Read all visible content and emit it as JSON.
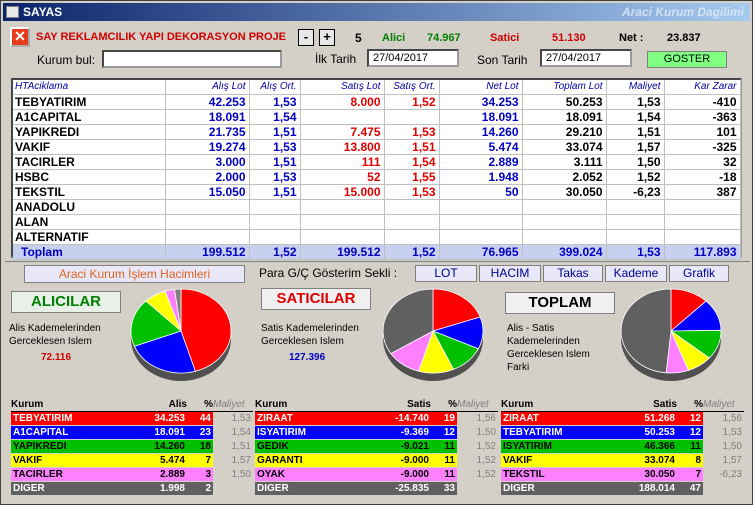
{
  "window": {
    "title": "SAYAS",
    "subtitle": "Araci Kurum Dagilimi"
  },
  "header": {
    "company": "SAY REKLAMCILIK YAPI DEKORASYON PROJE",
    "minus": "-",
    "plus": "+",
    "count": "5",
    "alici_label": "Alici",
    "alici_value": "74.967",
    "satici_label": "Satici",
    "satici_value": "51.130",
    "net_label": "Net :",
    "net_value": "23.837",
    "kurum_bul_label": "Kurum bul:",
    "kurum_bul_value": "",
    "ilk_tarih_label": "İlk Tarih",
    "ilk_tarih": "27/04/2017",
    "son_tarih_label": "Son Tarih",
    "son_tarih": "27/04/2017",
    "goster": "GOSTER"
  },
  "table": {
    "headers": [
      "HTAciklama",
      "Alış Lot",
      "Alış Ort.",
      "Satış Lot",
      "Satış Ort.",
      "Net Lot",
      "Toplam Lot",
      "Maliyet",
      "Kar Zarar"
    ],
    "rows": [
      [
        "TEBYATIRIM",
        "42.253",
        "1,53",
        "8.000",
        "1,52",
        "34.253",
        "50.253",
        "1,53",
        "-410"
      ],
      [
        "A1CAPITAL",
        "18.091",
        "1,54",
        "",
        "",
        "18.091",
        "18.091",
        "1,54",
        "-363"
      ],
      [
        "YAPIKREDI",
        "21.735",
        "1,51",
        "7.475",
        "1,53",
        "14.260",
        "29.210",
        "1,51",
        "101"
      ],
      [
        "VAKIF",
        "19.274",
        "1,53",
        "13.800",
        "1,51",
        "5.474",
        "33.074",
        "1,57",
        "-325"
      ],
      [
        "TACIRLER",
        "3.000",
        "1,51",
        "111",
        "1,54",
        "2.889",
        "3.111",
        "1,50",
        "32"
      ],
      [
        "HSBC",
        "2.000",
        "1,53",
        "52",
        "1,55",
        "1.948",
        "2.052",
        "1,52",
        "-18"
      ],
      [
        "TEKSTIL",
        "15.050",
        "1,51",
        "15.000",
        "1,53",
        "50",
        "30.050",
        "-6,23",
        "387"
      ],
      [
        "ANADOLU",
        "",
        "",
        "",
        "",
        "",
        "",
        "",
        ""
      ],
      [
        "ALAN",
        "",
        "",
        "",
        "",
        "",
        "",
        "",
        ""
      ],
      [
        "ALTERNATIF",
        "",
        "",
        "",
        "",
        "",
        "",
        "",
        ""
      ]
    ],
    "total": [
      "Toplam",
      "199.512",
      "1,52",
      "199.512",
      "1,52",
      "76.965",
      "399.024",
      "1,53",
      "117.893"
    ]
  },
  "controls": {
    "hacim": "Araci Kurum İşlem Hacimleri",
    "para_label": "Para G/Ç Gösterim Sekli :",
    "tabs": [
      "LOT",
      "HACIM",
      "Takas",
      "Kademe",
      "Grafik"
    ]
  },
  "alicilar": {
    "title": "ALICILAR",
    "desc1": "Alis Kademelerinden",
    "desc2": "Gerceklesen Islem",
    "value": "72.116"
  },
  "saticilar": {
    "title": "SATICILAR",
    "desc1": "Satis Kademelerinden",
    "desc2": "Gerceklesen Islem",
    "value": "127.396"
  },
  "toplam": {
    "title": "TOPLAM",
    "desc1": "Alis - Satis",
    "desc2": "Kademelerinden",
    "desc3": "Gerceklesen Islem",
    "desc4": "Farki"
  },
  "buy_table": {
    "headers": [
      "Kurum",
      "Alis",
      "%",
      "Maliyet"
    ],
    "rows": [
      {
        "name": "TEBYATIRIM",
        "val": "34.253",
        "pct": "44",
        "mal": "1,53",
        "color": "#ff0000"
      },
      {
        "name": "A1CAPITAL",
        "val": "18.091",
        "pct": "23",
        "mal": "1,54",
        "color": "#0000ff"
      },
      {
        "name": "YAPIKREDI",
        "val": "14.260",
        "pct": "18",
        "mal": "1,51",
        "color": "#00c000"
      },
      {
        "name": "VAKIF",
        "val": "5.474",
        "pct": "7",
        "mal": "1,57",
        "color": "#ffff00"
      },
      {
        "name": "TACIRLER",
        "val": "2.889",
        "pct": "3",
        "mal": "1,50",
        "color": "#ff80ff"
      },
      {
        "name": "DIGER",
        "val": "1.998",
        "pct": "2",
        "mal": "",
        "color": "#606060"
      }
    ]
  },
  "sell_table": {
    "headers": [
      "Kurum",
      "Satis",
      "%",
      "Maliyet"
    ],
    "rows": [
      {
        "name": "ZIRAAT",
        "val": "-14.740",
        "pct": "19",
        "mal": "1,56",
        "color": "#ff0000"
      },
      {
        "name": "ISYATIRIM",
        "val": "-9.369",
        "pct": "12",
        "mal": "1,50",
        "color": "#0000ff"
      },
      {
        "name": "GEDIK",
        "val": "-9.021",
        "pct": "11",
        "mal": "1,52",
        "color": "#00c000"
      },
      {
        "name": "GARANTI",
        "val": "-9.000",
        "pct": "11",
        "mal": "1,52",
        "color": "#ffff00"
      },
      {
        "name": "OYAK",
        "val": "-9.000",
        "pct": "11",
        "mal": "1,52",
        "color": "#ff80ff"
      },
      {
        "name": "DIGER",
        "val": "-25.835",
        "pct": "33",
        "mal": "",
        "color": "#606060"
      }
    ]
  },
  "total_table": {
    "headers": [
      "Kurum",
      "Satis",
      "%",
      "Maliyet"
    ],
    "rows": [
      {
        "name": "ZIRAAT",
        "val": "51.268",
        "pct": "12",
        "mal": "1,56",
        "color": "#ff0000"
      },
      {
        "name": "TEBYATIRIM",
        "val": "50.253",
        "pct": "12",
        "mal": "1,53",
        "color": "#0000ff"
      },
      {
        "name": "ISYATIRIM",
        "val": "46.366",
        "pct": "11",
        "mal": "1,50",
        "color": "#00c000"
      },
      {
        "name": "VAKIF",
        "val": "33.074",
        "pct": "8",
        "mal": "1,57",
        "color": "#ffff00"
      },
      {
        "name": "TEKSTIL",
        "val": "30.050",
        "pct": "7",
        "mal": "-6,23",
        "color": "#ff80ff"
      },
      {
        "name": "DIGER",
        "val": "188.014",
        "pct": "47",
        "mal": "",
        "color": "#606060"
      }
    ]
  },
  "pies": [
    {
      "slices": [
        44,
        23,
        18,
        7,
        3,
        2
      ],
      "colors": [
        "#ff0000",
        "#0000ff",
        "#00c000",
        "#ffff00",
        "#ff80ff",
        "#808080"
      ]
    },
    {
      "slices": [
        19,
        12,
        11,
        11,
        11,
        33
      ],
      "colors": [
        "#ff0000",
        "#0000ff",
        "#00c000",
        "#ffff00",
        "#ff80ff",
        "#606060"
      ]
    },
    {
      "slices": [
        12,
        12,
        11,
        8,
        7,
        47
      ],
      "colors": [
        "#ff0000",
        "#0000ff",
        "#00c000",
        "#ffff00",
        "#ff80ff",
        "#606060"
      ]
    }
  ]
}
